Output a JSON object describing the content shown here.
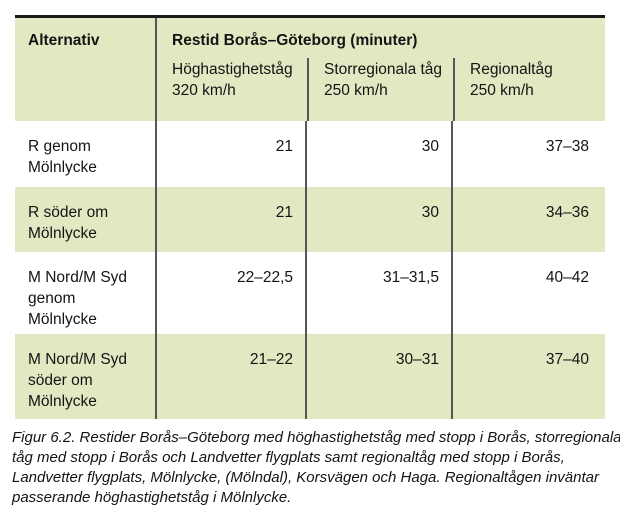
{
  "colors": {
    "row_green": "#e3e7c2",
    "divider_gray": "#565659",
    "top_rule_black": "#1a1a1a",
    "text": "#141414"
  },
  "table": {
    "col1_header": "Alternativ",
    "group_header": "Restid Borås–Göteborg (minuter)",
    "columns": [
      {
        "line1": "Höghastighetståg",
        "line2": "320 km/h"
      },
      {
        "line1": "Storregionala tåg",
        "line2": "250 km/h"
      },
      {
        "line1": "Regionaltåg",
        "line2": "250 km/h"
      }
    ],
    "rows": [
      {
        "label": [
          "R genom",
          "Mölnlycke"
        ],
        "values": [
          "21",
          "30",
          "37–38"
        ]
      },
      {
        "label": [
          "R söder om",
          "Mölnlycke"
        ],
        "values": [
          "21",
          "30",
          "34–36"
        ]
      },
      {
        "label": [
          "M Nord/M Syd",
          "genom",
          "Mölnlycke"
        ],
        "values": [
          "22–22,5",
          "31–31,5",
          "40–42"
        ]
      },
      {
        "label": [
          "M Nord/M Syd",
          "söder om",
          "Mölnlycke"
        ],
        "values": [
          "21–22",
          "30–31",
          "37–40"
        ]
      }
    ]
  },
  "caption": {
    "lines": [
      "Figur 6.2.  Restider Borås–Göteborg med höghastighetståg med stopp i Borås, storregionala",
      "tåg med stopp i Borås och Landvetter flygplats samt regionaltåg med stopp i Borås,",
      "Landvetter flygplats, Mölnlycke, (Mölndal), Korsvägen och Haga. Regionaltågen inväntar",
      "passerande höghastighetståg i Mölnlycke."
    ]
  }
}
